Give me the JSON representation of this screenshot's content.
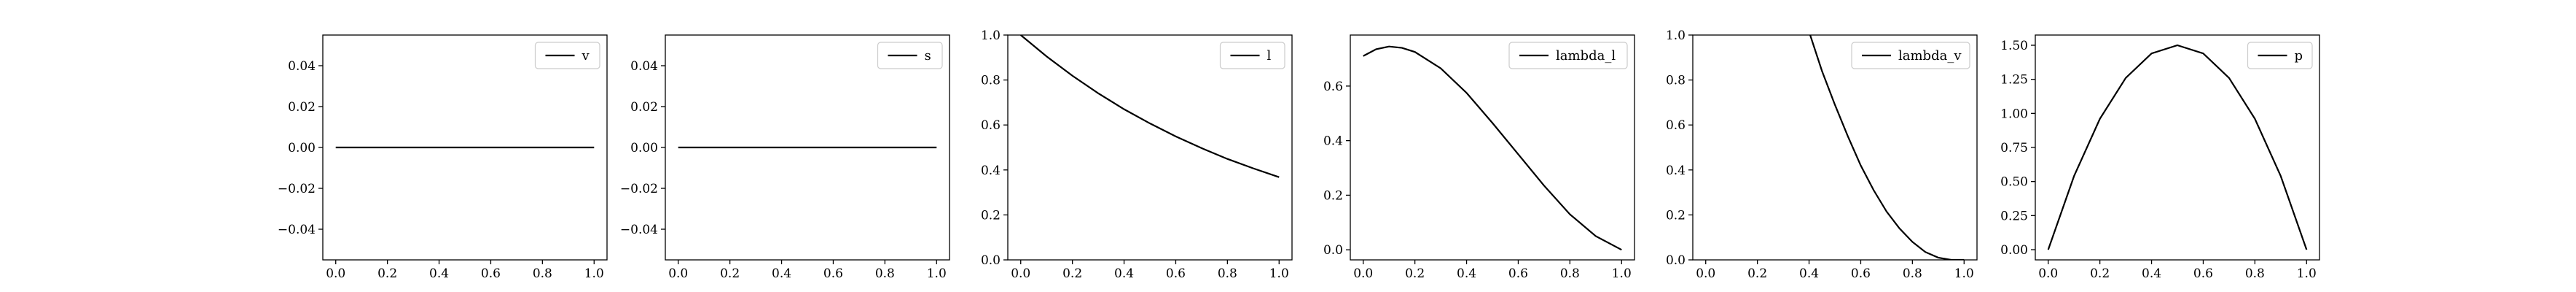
{
  "chart_data": [
    {
      "type": "line",
      "series": [
        {
          "name": "v",
          "x": [
            0,
            1
          ],
          "y": [
            0,
            0
          ]
        }
      ],
      "xlim": [
        -0.05,
        1.05
      ],
      "ylim": [
        -0.055,
        0.055
      ],
      "xticks": [
        0.0,
        0.2,
        0.4,
        0.6,
        0.8,
        1.0
      ],
      "xtick_labels": [
        "0.0",
        "0.2",
        "0.4",
        "0.6",
        "0.8",
        "1.0"
      ],
      "yticks": [
        -0.04,
        -0.02,
        0.0,
        0.02,
        0.04
      ],
      "ytick_labels": [
        "−0.04",
        "−0.02",
        "0.00",
        "0.02",
        "0.04"
      ],
      "legend": "top-right",
      "grid": false
    },
    {
      "type": "line",
      "series": [
        {
          "name": "s",
          "x": [
            0,
            1
          ],
          "y": [
            0,
            0
          ]
        }
      ],
      "xlim": [
        -0.05,
        1.05
      ],
      "ylim": [
        -0.055,
        0.055
      ],
      "xticks": [
        0.0,
        0.2,
        0.4,
        0.6,
        0.8,
        1.0
      ],
      "xtick_labels": [
        "0.0",
        "0.2",
        "0.4",
        "0.6",
        "0.8",
        "1.0"
      ],
      "yticks": [
        -0.04,
        -0.02,
        0.0,
        0.02,
        0.04
      ],
      "ytick_labels": [
        "−0.04",
        "−0.02",
        "0.00",
        "0.02",
        "0.04"
      ],
      "legend": "top-right",
      "grid": false
    },
    {
      "type": "line",
      "series": [
        {
          "name": "l",
          "x": [
            0,
            0.1,
            0.2,
            0.3,
            0.4,
            0.5,
            0.6,
            0.7,
            0.8,
            0.9,
            1.0
          ],
          "y": [
            1.0,
            0.905,
            0.819,
            0.741,
            0.67,
            0.607,
            0.549,
            0.497,
            0.449,
            0.407,
            0.368
          ]
        }
      ],
      "xlim": [
        -0.05,
        1.05
      ],
      "ylim": [
        0.0,
        1.0
      ],
      "xticks": [
        0.0,
        0.2,
        0.4,
        0.6,
        0.8,
        1.0
      ],
      "xtick_labels": [
        "0.0",
        "0.2",
        "0.4",
        "0.6",
        "0.8",
        "1.0"
      ],
      "yticks": [
        0.0,
        0.2,
        0.4,
        0.6,
        0.8,
        1.0
      ],
      "ytick_labels": [
        "0.0",
        "0.2",
        "0.4",
        "0.6",
        "0.8",
        "1.0"
      ],
      "legend": "top-right",
      "grid": false
    },
    {
      "type": "line",
      "series": [
        {
          "name": "lambda_l",
          "x": [
            0,
            0.05,
            0.1,
            0.15,
            0.2,
            0.3,
            0.4,
            0.5,
            0.6,
            0.7,
            0.8,
            0.9,
            1.0
          ],
          "y": [
            0.71,
            0.735,
            0.745,
            0.74,
            0.725,
            0.665,
            0.575,
            0.465,
            0.35,
            0.235,
            0.13,
            0.05,
            0.0
          ]
        }
      ],
      "xlim": [
        -0.05,
        1.05
      ],
      "ylim": [
        -0.037,
        0.787
      ],
      "xticks": [
        0.0,
        0.2,
        0.4,
        0.6,
        0.8,
        1.0
      ],
      "xtick_labels": [
        "0.0",
        "0.2",
        "0.4",
        "0.6",
        "0.8",
        "1.0"
      ],
      "yticks": [
        0.0,
        0.2,
        0.4,
        0.6
      ],
      "ytick_labels": [
        "0.0",
        "0.2",
        "0.4",
        "0.6"
      ],
      "legend": "top-right",
      "grid": false
    },
    {
      "type": "line",
      "series": [
        {
          "name": "lambda_v",
          "x": [
            0.39,
            0.45,
            0.5,
            0.55,
            0.6,
            0.65,
            0.7,
            0.75,
            0.8,
            0.85,
            0.9,
            0.95,
            1.0
          ],
          "y": [
            1.05,
            0.84,
            0.69,
            0.55,
            0.42,
            0.31,
            0.215,
            0.14,
            0.08,
            0.035,
            0.01,
            0.0,
            0.0
          ]
        }
      ],
      "xlim": [
        -0.05,
        1.05
      ],
      "ylim": [
        0.0,
        1.0
      ],
      "xticks": [
        0.0,
        0.2,
        0.4,
        0.6,
        0.8,
        1.0
      ],
      "xtick_labels": [
        "0.0",
        "0.2",
        "0.4",
        "0.6",
        "0.8",
        "1.0"
      ],
      "yticks": [
        0.0,
        0.2,
        0.4,
        0.6,
        0.8,
        1.0
      ],
      "ytick_labels": [
        "0.0",
        "0.2",
        "0.4",
        "0.6",
        "0.8",
        "1.0"
      ],
      "legend": "top-right",
      "grid": false
    },
    {
      "type": "line",
      "series": [
        {
          "name": "p",
          "x": [
            0,
            0.1,
            0.2,
            0.3,
            0.4,
            0.5,
            0.6,
            0.7,
            0.8,
            0.9,
            1.0
          ],
          "y": [
            0.0,
            0.54,
            0.96,
            1.26,
            1.44,
            1.5,
            1.44,
            1.26,
            0.96,
            0.54,
            0.0
          ]
        }
      ],
      "xlim": [
        -0.05,
        1.05
      ],
      "ylim": [
        -0.075,
        1.575
      ],
      "xticks": [
        0.0,
        0.2,
        0.4,
        0.6,
        0.8,
        1.0
      ],
      "xtick_labels": [
        "0.0",
        "0.2",
        "0.4",
        "0.6",
        "0.8",
        "1.0"
      ],
      "yticks": [
        0.0,
        0.25,
        0.5,
        0.75,
        1.0,
        1.25,
        1.5
      ],
      "ytick_labels": [
        "0.00",
        "0.25",
        "0.50",
        "0.75",
        "1.00",
        "1.25",
        "1.50"
      ],
      "legend": "top-right",
      "grid": false
    }
  ],
  "colors": {
    "line": "#000000",
    "axes": "#000000",
    "background": "#ffffff",
    "legend_border": "#cccccc"
  }
}
